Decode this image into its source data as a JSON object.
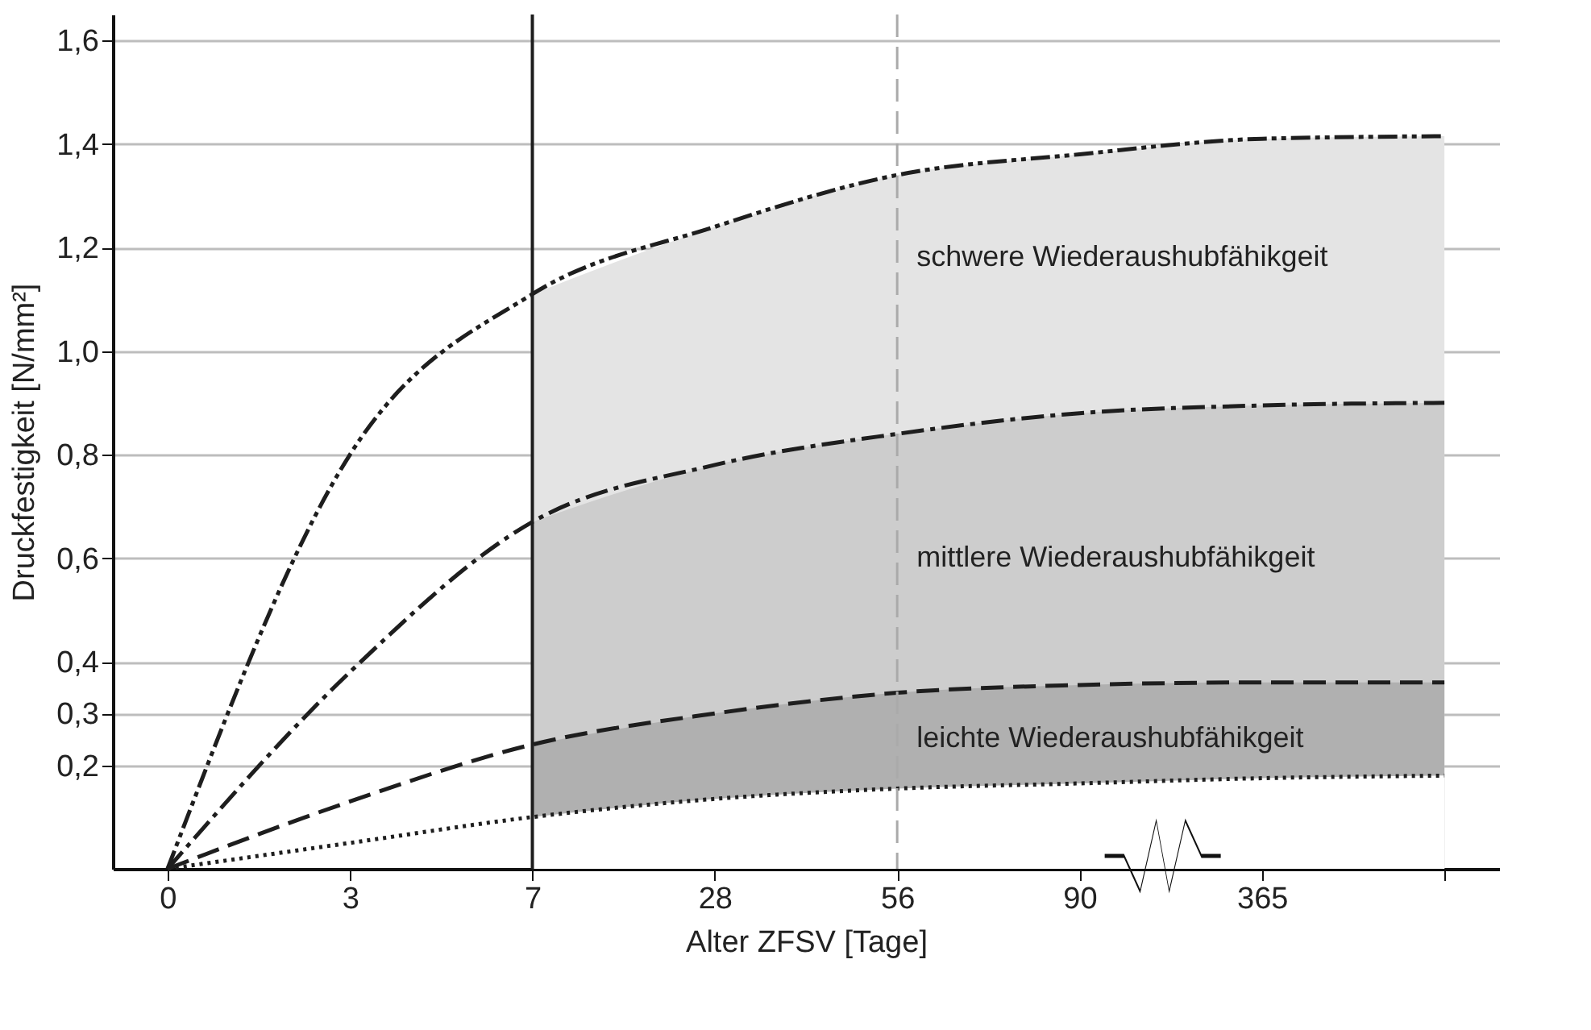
{
  "chart_data": {
    "type": "line",
    "xlabel": "Alter ZFSV [Tage]",
    "ylabel": "Druckfestigkeit [N/mm²]",
    "categories": [
      "0",
      "3",
      "7",
      "28",
      "56",
      "90",
      "365",
      null
    ],
    "series": [
      {
        "type": "area",
        "color": "#e4e4e4",
        "values": [
          null,
          null,
          1.11,
          1.24,
          1.34,
          1.38,
          1.41,
          1.415
        ]
      },
      {
        "type": "area",
        "color": "#cdcdcd",
        "values": [
          null,
          null,
          0.67,
          0.78,
          0.84,
          0.88,
          0.895,
          0.9
        ]
      },
      {
        "type": "area",
        "color": "#b0b0b0",
        "values": [
          null,
          null,
          0.24,
          0.3,
          0.34,
          0.355,
          0.36,
          0.36
        ]
      },
      {
        "type": "area",
        "color": "#ffffff",
        "values": [
          null,
          null,
          0.1,
          0.135,
          0.155,
          0.165,
          0.175,
          0.18
        ]
      },
      {
        "color": "#1e1e1e",
        "line_style": "dashdotdot",
        "values": [
          0,
          0.8,
          1.11,
          1.24,
          1.34,
          1.38,
          1.41,
          1.415
        ]
      },
      {
        "color": "#1e1e1e",
        "line_style": "dashdot",
        "values": [
          0,
          0.38,
          0.67,
          0.78,
          0.84,
          0.88,
          0.895,
          0.9
        ]
      },
      {
        "color": "#1e1e1e",
        "line_style": "dashed",
        "values": [
          0,
          0.13,
          0.24,
          0.3,
          0.34,
          0.355,
          0.36,
          0.36
        ]
      },
      {
        "color": "#1e1e1e",
        "line_style": "dotted",
        "values": [
          0,
          0.05,
          0.1,
          0.135,
          0.155,
          0.165,
          0.175,
          0.18
        ]
      }
    ],
    "ref_lines": [
      {
        "axis": "x",
        "value": "7",
        "color": "#1e1e1e",
        "line_style": "solid"
      },
      {
        "axis": "x",
        "value": "56",
        "color": "#aaaaaa",
        "line_style": "dashed"
      }
    ],
    "annotations": [
      {
        "text": "schwere Wiederaushubfähikgeit",
        "x": "56",
        "y": 1.18
      },
      {
        "text": "mittlere Wiederaushubfähikgeit",
        "x": "56",
        "y": 0.6
      },
      {
        "text": "leichte Wiederaushubfähikgeit",
        "x": "56",
        "y": 0.25
      }
    ],
    "ylim": [
      0,
      1.65
    ],
    "yticks": [
      {
        "value": 0.2,
        "label": "0,2"
      },
      {
        "value": 0.3,
        "label": "0,3"
      },
      {
        "value": 0.4,
        "label": "0,4"
      },
      {
        "value": 0.6,
        "label": "0,6"
      },
      {
        "value": 0.8,
        "label": "0,8"
      },
      {
        "value": 1.0,
        "label": "1,0"
      },
      {
        "value": 1.2,
        "label": "1,2"
      },
      {
        "value": 1.4,
        "label": "1,4"
      },
      {
        "value": 1.6,
        "label": "1,6"
      }
    ],
    "grid": "y"
  }
}
